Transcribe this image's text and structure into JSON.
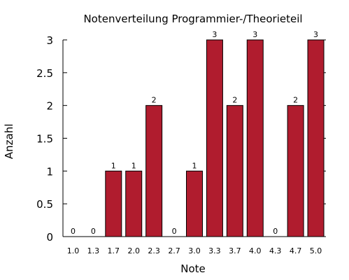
{
  "chart_data": {
    "type": "bar",
    "title": "Notenverteilung Programmier-/Theorieteil",
    "xlabel": "Note",
    "ylabel": "Anzahl",
    "categories": [
      "1.0",
      "1.3",
      "1.7",
      "2.0",
      "2.3",
      "2.7",
      "3.0",
      "3.3",
      "3.7",
      "4.0",
      "4.3",
      "4.7",
      "5.0"
    ],
    "values": [
      0,
      0,
      1,
      1,
      2,
      0,
      1,
      3,
      2,
      3,
      0,
      2,
      3
    ],
    "data_labels": [
      "0",
      "0",
      "1",
      "1",
      "2",
      "0",
      "1",
      "3",
      "2",
      "3",
      "0",
      "2",
      "3"
    ],
    "ylim": [
      0,
      3
    ],
    "yticks": [
      0,
      0.5,
      1,
      1.5,
      2,
      2.5,
      3
    ],
    "ytick_labels": [
      "0",
      "0.5",
      "1",
      "1.5",
      "2",
      "2.5",
      "3"
    ],
    "grid": false,
    "bar_color": "#b01c2e",
    "bar_edge_color": "#000000"
  }
}
